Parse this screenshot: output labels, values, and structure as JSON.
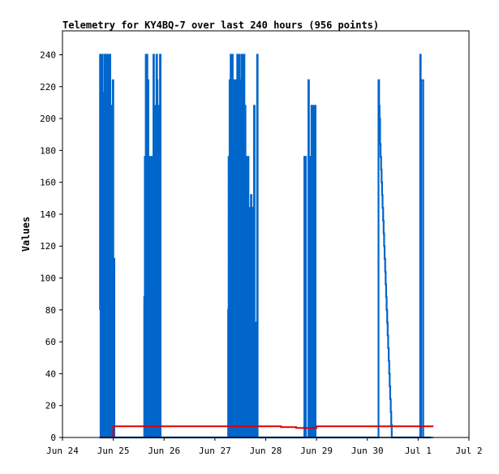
{
  "chart_data": {
    "type": "line",
    "title": "Telemetry for KY4BQ-7 over last 240 hours (956 points)",
    "xlabel": "",
    "ylabel": "Values",
    "xlim": [
      "Jun 24",
      "Jul 2"
    ],
    "ylim": [
      0,
      255
    ],
    "grid": false,
    "legend": "none",
    "x_ticks": [
      "Jun 24",
      "Jun 25",
      "Jun 26",
      "Jun 27",
      "Jun 28",
      "Jun 29",
      "Jun 30",
      "Jul 1",
      "Jul 2"
    ],
    "y_ticks": [
      0,
      20,
      40,
      60,
      80,
      100,
      120,
      140,
      160,
      180,
      200,
      220,
      240
    ],
    "series": [
      {
        "color": "#0066cc",
        "x_days": [
          0.73,
          0.74,
          0.75,
          0.76,
          0.77,
          0.78,
          0.79,
          0.8,
          0.81,
          0.82,
          0.83,
          0.84,
          0.85,
          0.86,
          0.87,
          0.88,
          0.89,
          0.9,
          0.91,
          0.92,
          0.93,
          0.94,
          0.95,
          0.96,
          0.97,
          0.98,
          0.99,
          1.0,
          1.01,
          1.02,
          1.03,
          1.04,
          1.05,
          1.06,
          1.07,
          1.08,
          1.09,
          1.1,
          1.11,
          1.6,
          1.61,
          1.62,
          1.63,
          1.64,
          1.65,
          1.66,
          1.67,
          1.68,
          1.69,
          1.7,
          1.71,
          1.72,
          1.73,
          1.74,
          1.75,
          1.76,
          1.77,
          1.78,
          1.79,
          1.8,
          1.81,
          1.82,
          1.83,
          1.84,
          1.85,
          1.86,
          1.87,
          1.88,
          1.89,
          1.9,
          1.91,
          1.92,
          1.93,
          1.94,
          1.95,
          1.96,
          1.97,
          1.98,
          1.99,
          2.0,
          2.01,
          2.02,
          2.03,
          2.04,
          2.05,
          2.06,
          2.07,
          2.08,
          2.09,
          2.1,
          2.11,
          2.12,
          2.13,
          2.14,
          2.15,
          3.25,
          3.26,
          3.27,
          3.28,
          3.29,
          3.3,
          3.31,
          3.32,
          3.33,
          3.34,
          3.35,
          3.36,
          3.37,
          3.38,
          3.39,
          3.4,
          3.41,
          3.42,
          3.43,
          3.44,
          3.45,
          3.46,
          3.47,
          3.48,
          3.49,
          3.5,
          3.51,
          3.52,
          3.53,
          3.54,
          3.55,
          3.56,
          3.57,
          3.58,
          3.59,
          3.6,
          3.61,
          3.62,
          3.63,
          3.64,
          3.65,
          3.66,
          3.67,
          3.68,
          3.69,
          3.7,
          3.71,
          3.72,
          3.73,
          3.74,
          3.75,
          3.76,
          3.77,
          3.78,
          3.79,
          3.8,
          3.81,
          3.82,
          3.83,
          3.84,
          3.85,
          3.86,
          3.87,
          3.88,
          3.89,
          3.9,
          3.91,
          3.92,
          3.93,
          3.94,
          3.95,
          3.96,
          3.97,
          3.98,
          3.99,
          4.0,
          4.01,
          4.02,
          4.03,
          4.04,
          4.05,
          4.06,
          4.07,
          4.08,
          4.09,
          4.1,
          4.11,
          4.12,
          4.13,
          4.14,
          4.15,
          4.75,
          4.76,
          4.77,
          4.78,
          4.79,
          4.8,
          4.81,
          4.82,
          4.83,
          4.84,
          4.85,
          4.86,
          4.87,
          4.88,
          4.89,
          4.9,
          4.91,
          4.92,
          4.93,
          4.94,
          4.95,
          4.96,
          4.97,
          4.98,
          4.99,
          5.0,
          5.01,
          5.02,
          5.03,
          5.04,
          5.05,
          5.06,
          5.07,
          5.08,
          6.2,
          6.21,
          6.22,
          6.23,
          6.24,
          6.25,
          6.26,
          6.27,
          6.28,
          6.29,
          6.3,
          6.31,
          6.32,
          6.33,
          6.34,
          6.35,
          6.36,
          6.37,
          6.38,
          6.39,
          6.4,
          6.41,
          6.42,
          6.43,
          6.44,
          6.45,
          6.46,
          6.47,
          6.48,
          6.49,
          6.5,
          7.02,
          7.03,
          7.04,
          7.05,
          7.06,
          7.07,
          7.08,
          7.09,
          7.1,
          7.11,
          7.12,
          7.13,
          7.14,
          7.15,
          7.16,
          7.17,
          7.18,
          7.19,
          7.2,
          7.21,
          7.22,
          7.23,
          7.24,
          7.25
        ],
        "values": [
          80,
          240,
          0,
          240,
          0,
          240,
          216,
          0,
          176,
          0,
          240,
          0,
          240,
          0,
          176,
          0,
          240,
          0,
          216,
          0,
          240,
          0,
          208,
          0,
          176,
          0,
          224,
          0,
          112,
          0,
          0,
          0,
          0,
          0,
          0,
          0,
          0,
          0,
          0,
          0,
          88,
          176,
          0,
          240,
          0,
          240,
          0,
          224,
          0,
          112,
          0,
          176,
          0,
          88,
          176,
          0,
          88,
          0,
          240,
          0,
          208,
          0,
          88,
          0,
          240,
          224,
          0,
          104,
          0,
          208,
          0,
          240,
          0,
          0,
          0,
          0,
          0,
          0,
          0,
          0,
          0,
          0,
          0,
          0,
          0,
          0,
          0,
          0,
          0,
          0,
          0,
          0,
          0,
          0,
          0,
          0,
          80,
          176,
          0,
          224,
          0,
          240,
          160,
          0,
          240,
          0,
          224,
          0,
          80,
          0,
          224,
          0,
          192,
          0,
          240,
          0,
          176,
          0,
          240,
          0,
          224,
          0,
          176,
          240,
          0,
          240,
          0,
          240,
          0,
          208,
          0,
          176,
          0,
          176,
          0,
          176,
          0,
          112,
          0,
          144,
          0,
          152,
          0,
          144,
          0,
          72,
          0,
          208,
          0,
          72,
          0,
          0,
          0,
          240,
          0,
          0,
          0,
          0,
          0,
          0,
          0,
          0,
          0,
          0,
          0,
          0,
          0,
          0,
          0,
          0,
          0,
          0,
          0,
          0,
          0,
          0,
          0,
          0,
          0,
          0,
          0,
          0,
          0,
          0,
          0,
          0,
          0,
          176,
          0,
          176,
          0,
          0,
          0,
          0,
          0,
          224,
          0,
          176,
          176,
          176,
          0,
          208,
          208,
          0,
          144,
          0,
          208,
          0,
          208,
          0,
          0,
          0,
          0,
          0,
          0,
          0,
          0,
          0,
          0,
          0,
          0,
          0,
          224,
          208,
          200,
          184,
          176,
          168,
          160,
          152,
          144,
          136,
          128,
          120,
          112,
          104,
          96,
          88,
          80,
          72,
          64,
          56,
          48,
          40,
          32,
          24,
          16,
          8,
          0,
          0,
          0,
          0,
          0,
          240,
          0,
          224,
          224,
          224,
          224,
          0,
          0,
          0,
          0,
          0,
          0,
          0,
          0,
          0,
          0,
          0,
          0,
          0,
          0,
          0,
          0
        ]
      },
      {
        "color": "#dd0000",
        "x_days": [
          0.73,
          1.0,
          2.0,
          3.0,
          4.0,
          4.2,
          4.3,
          4.5,
          4.6,
          4.7,
          5.0,
          6.0,
          7.0,
          7.3
        ],
        "values": [
          0,
          7,
          7,
          7,
          7,
          7,
          6.5,
          6.5,
          6,
          6,
          7,
          7,
          7,
          7
        ]
      },
      {
        "color": "#000000",
        "x_days": [
          0.73,
          7.3
        ],
        "values": [
          0,
          0
        ]
      }
    ]
  }
}
